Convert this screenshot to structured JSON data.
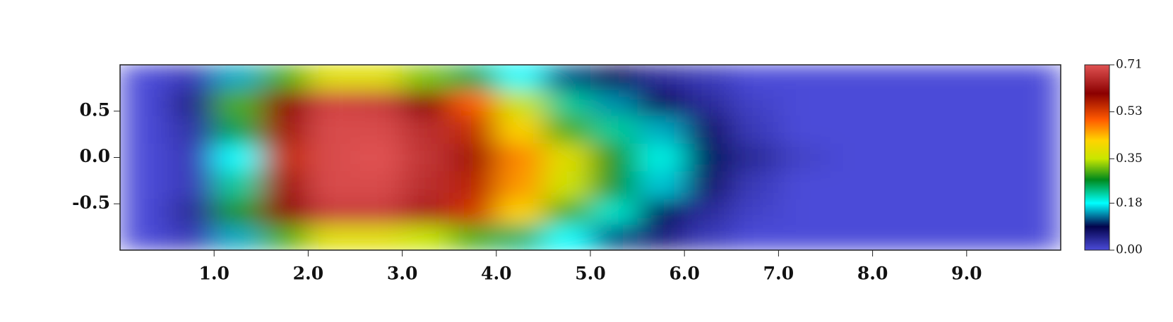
{
  "chart_data": {
    "type": "heatmap",
    "x": [
      0.25,
      0.75,
      1.25,
      1.75,
      2.25,
      2.75,
      3.25,
      3.75,
      4.25,
      4.75,
      5.25,
      5.75,
      6.25,
      6.75,
      7.25,
      7.75,
      8.25,
      8.75,
      9.25,
      9.75
    ],
    "y": [
      0.85,
      0.6,
      0.3,
      0,
      -0.3,
      -0.6,
      -0.85
    ],
    "z": [
      [
        0,
        0.02,
        0.15,
        0.3,
        0.38,
        0.38,
        0.32,
        0.25,
        0.18,
        0.12,
        0.08,
        0.04,
        0.02,
        0,
        0,
        0,
        0,
        0,
        0,
        0
      ],
      [
        0,
        0.05,
        0.3,
        0.6,
        0.69,
        0.68,
        0.6,
        0.5,
        0.35,
        0.22,
        0.14,
        0.08,
        0.04,
        0.01,
        0,
        0,
        0,
        0,
        0,
        0
      ],
      [
        0,
        0.03,
        0.25,
        0.58,
        0.7,
        0.7,
        0.66,
        0.55,
        0.42,
        0.3,
        0.22,
        0.15,
        0.07,
        0.02,
        0,
        0,
        0,
        0,
        0,
        0
      ],
      [
        0,
        0.02,
        0.18,
        0.55,
        0.7,
        0.71,
        0.67,
        0.58,
        0.47,
        0.38,
        0.28,
        0.19,
        0.1,
        0.04,
        0.01,
        0,
        0,
        0,
        0,
        0
      ],
      [
        0,
        0.02,
        0.22,
        0.58,
        0.7,
        0.7,
        0.66,
        0.56,
        0.46,
        0.36,
        0.26,
        0.16,
        0.07,
        0.02,
        0,
        0,
        0,
        0,
        0,
        0
      ],
      [
        0,
        0.04,
        0.28,
        0.6,
        0.68,
        0.68,
        0.64,
        0.54,
        0.42,
        0.3,
        0.2,
        0.1,
        0.04,
        0.01,
        0,
        0,
        0,
        0,
        0,
        0
      ],
      [
        0,
        0.02,
        0.15,
        0.3,
        0.38,
        0.38,
        0.35,
        0.3,
        0.24,
        0.18,
        0.12,
        0.06,
        0.02,
        0,
        0,
        0,
        0,
        0,
        0,
        0
      ]
    ],
    "xlim": [
      0,
      10
    ],
    "ylim": [
      -1,
      1
    ],
    "xticks": [
      {
        "value": 1,
        "label": "1.0"
      },
      {
        "value": 2,
        "label": "2.0"
      },
      {
        "value": 3,
        "label": "3.0"
      },
      {
        "value": 4,
        "label": "4.0"
      },
      {
        "value": 5,
        "label": "5.0"
      },
      {
        "value": 6,
        "label": "6.0"
      },
      {
        "value": 7,
        "label": "7.0"
      },
      {
        "value": 8,
        "label": "8.0"
      },
      {
        "value": 9,
        "label": "9.0"
      }
    ],
    "yticks": [
      0.5,
      {
        "value": 0,
        "label": "0.0"
      },
      -0.5
    ],
    "zlim": [
      0,
      0.71
    ],
    "zticks": [
      {
        "value": 0,
        "label": "0.00"
      },
      0.18,
      0.35,
      0.53,
      0.71
    ],
    "colormap": [
      {
        "value": 0,
        "color": "#4b4bd8"
      },
      {
        "value": 0.09,
        "color": "#03034c"
      },
      {
        "value": 0.18,
        "color": "#00ffff"
      },
      {
        "value": 0.27,
        "color": "#008a1c"
      },
      {
        "value": 0.35,
        "color": "#c8e600"
      },
      {
        "value": 0.42,
        "color": "#ffd400"
      },
      {
        "value": 0.5,
        "color": "#ff5a00"
      },
      {
        "value": 0.6,
        "color": "#8b0000"
      },
      {
        "value": 0.71,
        "color": "#e05252"
      }
    ]
  }
}
